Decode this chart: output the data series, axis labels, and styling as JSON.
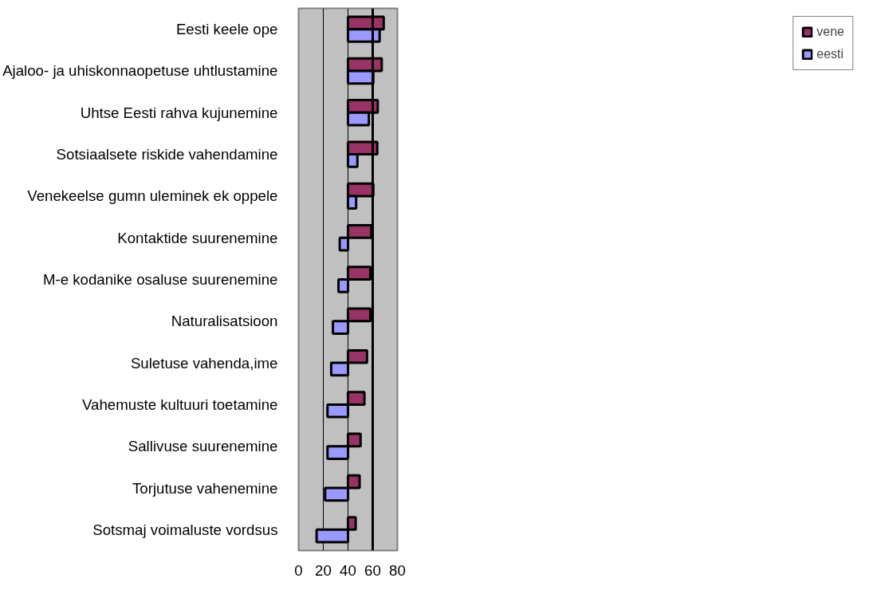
{
  "chart_data": {
    "type": "bar",
    "orientation": "horizontal",
    "categories": [
      "Eesti keele ope",
      "Ajaloo- ja uhiskonnaopetuse uhtlustamine",
      "Uhtse Eesti rahva kujunemine",
      "Sotsiaalsete riskide vahendamine",
      "Venekeelse gumn uleminek ek oppele",
      "Kontaktide suurenemine",
      "M-e kodanike osaluse suurenemine",
      "Naturalisatsioon",
      "Suletuse vahenda,ime",
      "Vahemuste kultuuri toetamine",
      "Sallivuse suurenemine",
      "Torjutuse vahenemine",
      "Sotsmaj voimaluste vordsus"
    ],
    "series": [
      {
        "name": "vene",
        "color": "#993366",
        "base": [
          40,
          40,
          40,
          40,
          40,
          40,
          40,
          40,
          40,
          40,
          40,
          40,
          40
        ],
        "values": [
          28.9,
          27.3,
          24.1,
          23.7,
          20.5,
          18.9,
          18.1,
          18.1,
          15.4,
          13.3,
          10.2,
          9.4,
          6.2
        ]
      },
      {
        "name": "eesti",
        "color": "#9999ff",
        "base": [
          40,
          40,
          40,
          40,
          40,
          40,
          40,
          40,
          40,
          40,
          40,
          40,
          40
        ],
        "values": [
          25.6,
          20.5,
          16.9,
          7.6,
          6.6,
          -6.7,
          -7.7,
          -12.2,
          -13.6,
          -16.6,
          -16.6,
          -18.5,
          -25.4
        ]
      }
    ],
    "xlim": [
      0,
      80
    ],
    "xticks": [
      0,
      20,
      40,
      60,
      80
    ],
    "ref_lines": [
      {
        "axis": "x",
        "value": 60
      }
    ],
    "grid": "x",
    "legend": "right"
  }
}
